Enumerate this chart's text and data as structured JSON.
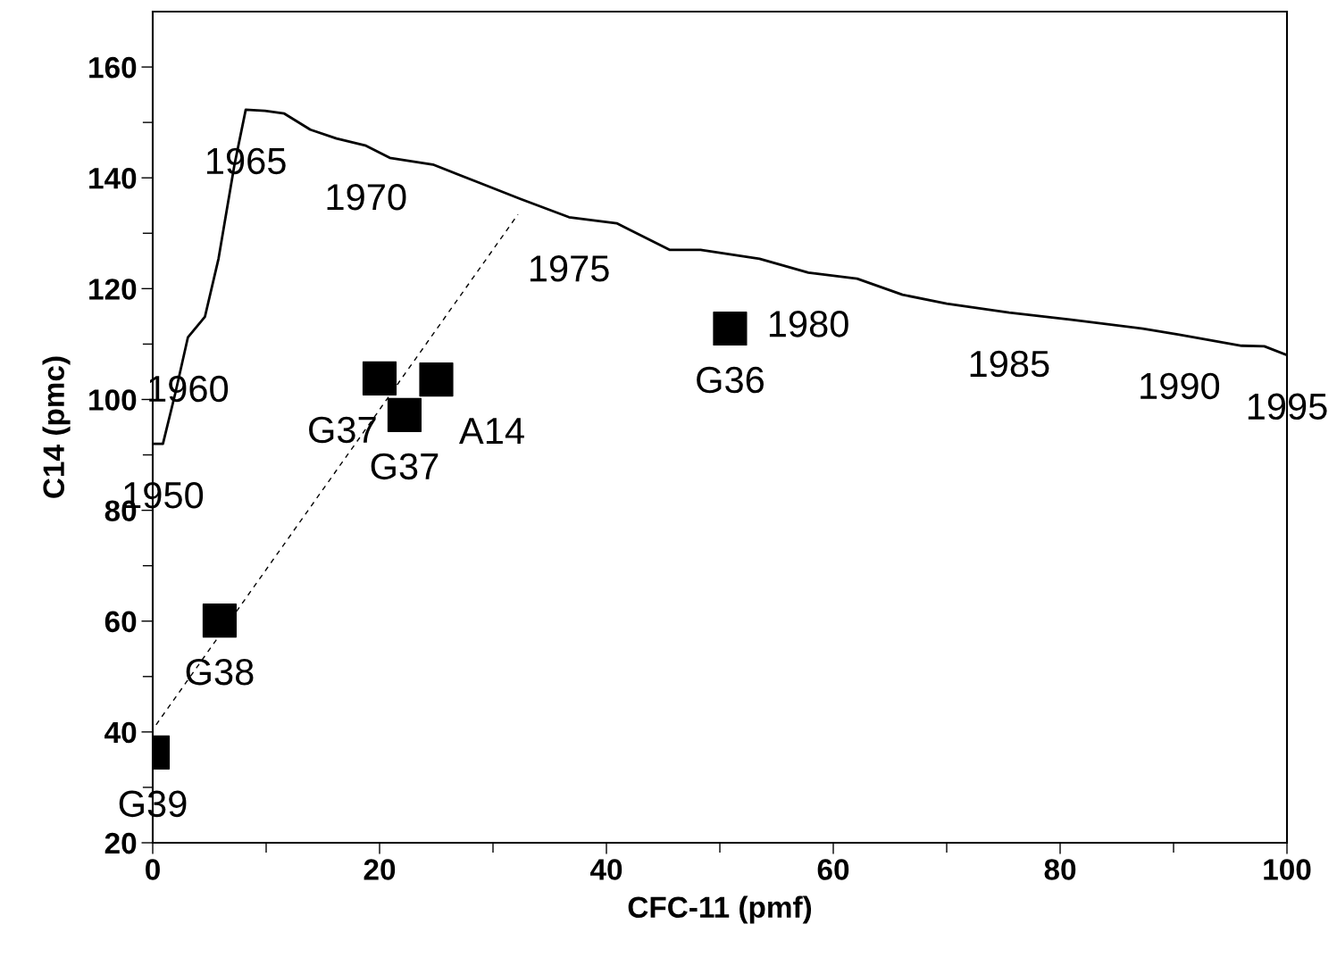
{
  "chart_data": {
    "type": "scatter",
    "xlabel": "CFC-11 (pmf)",
    "ylabel": "C14 (pmc)",
    "xlim": [
      0,
      100
    ],
    "ylim": [
      20,
      170
    ],
    "xticks": [
      0,
      {
        "value": 10,
        "label": null
      },
      20,
      {
        "value": 30,
        "label": null
      },
      40,
      {
        "value": 50,
        "label": null
      },
      60,
      {
        "value": 70,
        "label": null
      },
      80,
      {
        "value": 90,
        "label": null
      },
      100
    ],
    "yticks": [
      20,
      {
        "value": 30,
        "label": null
      },
      40,
      {
        "value": 50,
        "label": null
      },
      60,
      {
        "value": 70,
        "label": null
      },
      80,
      {
        "value": 90,
        "label": null
      },
      100,
      {
        "value": 110,
        "label": null
      },
      120,
      {
        "value": 130,
        "label": null
      },
      140,
      {
        "value": 150,
        "label": null
      },
      160
    ],
    "grid": false,
    "legend": false,
    "series": [
      {
        "type": "line",
        "color": "#000000",
        "marker": "none",
        "line_style": "solid",
        "x": [
          0,
          0.9,
          2.0,
          3.1,
          4.6,
          5.8,
          7.2,
          8.2,
          9.9,
          11.6,
          13.9,
          16.2,
          18.8,
          20.9,
          24.7,
          28.8,
          32.4,
          36.7,
          40.9,
          45.6,
          48.3,
          53.5,
          57.8,
          62.1,
          66.1,
          70.0,
          75.5,
          81.0,
          87.3,
          90.5,
          96.0,
          98.0,
          100
        ],
        "values": [
          92,
          92,
          101.2,
          111.2,
          114.9,
          125.4,
          142.3,
          152.3,
          152.1,
          151.6,
          148.7,
          147.1,
          145.8,
          143.6,
          142.4,
          139.1,
          136.2,
          132.9,
          131.8,
          127.0,
          127.0,
          125.4,
          122.9,
          121.8,
          118.9,
          117.3,
          115.7,
          114.4,
          112.8,
          111.7,
          109.7,
          109.6,
          108.0
        ]
      },
      {
        "type": "line",
        "color": "#000000",
        "marker": "none",
        "line_style": "dashed",
        "x": [
          0.3,
          32.2
        ],
        "values": [
          41.3,
          133.4
        ]
      },
      {
        "color": "#000000",
        "marker": "square",
        "x": [
          0,
          5.9,
          20.0,
          22.2,
          25.0,
          50.9
        ],
        "values": [
          36.3,
          60.1,
          103.8,
          97.2,
          103.6,
          112.8
        ]
      }
    ],
    "annotations": [
      {
        "text": "1950",
        "x": 0.9,
        "y": 92
      },
      {
        "text": "1960",
        "x": 3.1,
        "y": 111.2
      },
      {
        "text": "1965",
        "x": 8.2,
        "y": 152.3
      },
      {
        "text": "1970",
        "x": 18.8,
        "y": 145.8
      },
      {
        "text": "1975",
        "x": 36.7,
        "y": 132.9
      },
      {
        "text": "1980",
        "x": 57.8,
        "y": 122.9
      },
      {
        "text": "1985",
        "x": 75.5,
        "y": 115.7
      },
      {
        "text": "1990",
        "x": 90.5,
        "y": 111.7
      },
      {
        "text": "1995",
        "x": 100,
        "y": 108.0
      },
      {
        "text": "G39",
        "x": 0,
        "y": 36.3
      },
      {
        "text": "G38",
        "x": 5.9,
        "y": 60.1
      },
      {
        "text": "G37",
        "x": 20.0,
        "y": 103.8
      },
      {
        "text": "G37",
        "x": 22.2,
        "y": 97.2
      },
      {
        "text": "A14",
        "x": 25.0,
        "y": 103.6
      },
      {
        "text": "G36",
        "x": 50.9,
        "y": 112.8
      }
    ]
  }
}
